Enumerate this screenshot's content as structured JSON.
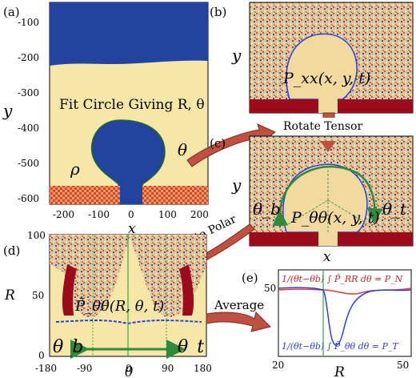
{
  "panels": {
    "a": {
      "label": "(a)",
      "y_ticks": [
        "-100",
        "-200",
        "-300",
        "-400",
        "-500",
        "-600"
      ],
      "x_ticks": [
        "-200",
        "-100",
        "0",
        "100",
        "200"
      ],
      "xlabel": "x",
      "ylabel": "y",
      "annotation": "Fit Circle Giving R, θ",
      "rho": "ρ",
      "theta": "θ"
    },
    "b": {
      "label": "(b)",
      "ylabel": "y",
      "formula": "P_xx(x, y, t)"
    },
    "c": {
      "label": "(c)",
      "ylabel": "y",
      "xlabel": "x",
      "formula": "P_θθ(x, y, t)",
      "theta_b": "θ_b",
      "theta_t": "θ_t"
    },
    "d": {
      "label": "(d)",
      "y_ticks": [
        "100",
        "50",
        "0"
      ],
      "x_ticks": [
        "-180",
        "-90",
        "0",
        "90",
        "180"
      ],
      "xlabel": "θ",
      "ylabel": "R",
      "formula": "P̃_θθ(R, θ, t)",
      "theta_b": "θ_b",
      "theta_t": "θ_t"
    },
    "e": {
      "label": "(e)",
      "y_ticks": [
        "50"
      ],
      "x_ticks": [
        "20",
        "50"
      ],
      "xlabel": "R",
      "top_formula": "1/(θt−θb) ∫ P̃_RR dθ = P_N",
      "bottom_formula": "1/(θt−θb) ∫ P̃_θθ dθ = P_T"
    }
  },
  "arrows": {
    "rotate": "Rotate Tensor",
    "polar": "Map to Polar",
    "average": "Average"
  },
  "colors": {
    "blue_region": "#22439e",
    "cream": "#f6e7a8",
    "wall": "#c8372b",
    "maroon": "#9b0b1c",
    "arrow": "#c0503f",
    "noise": "#d9b985",
    "green": "#3fa34d",
    "line_red": "#e53935",
    "line_blue": "#2a3fe0"
  }
}
